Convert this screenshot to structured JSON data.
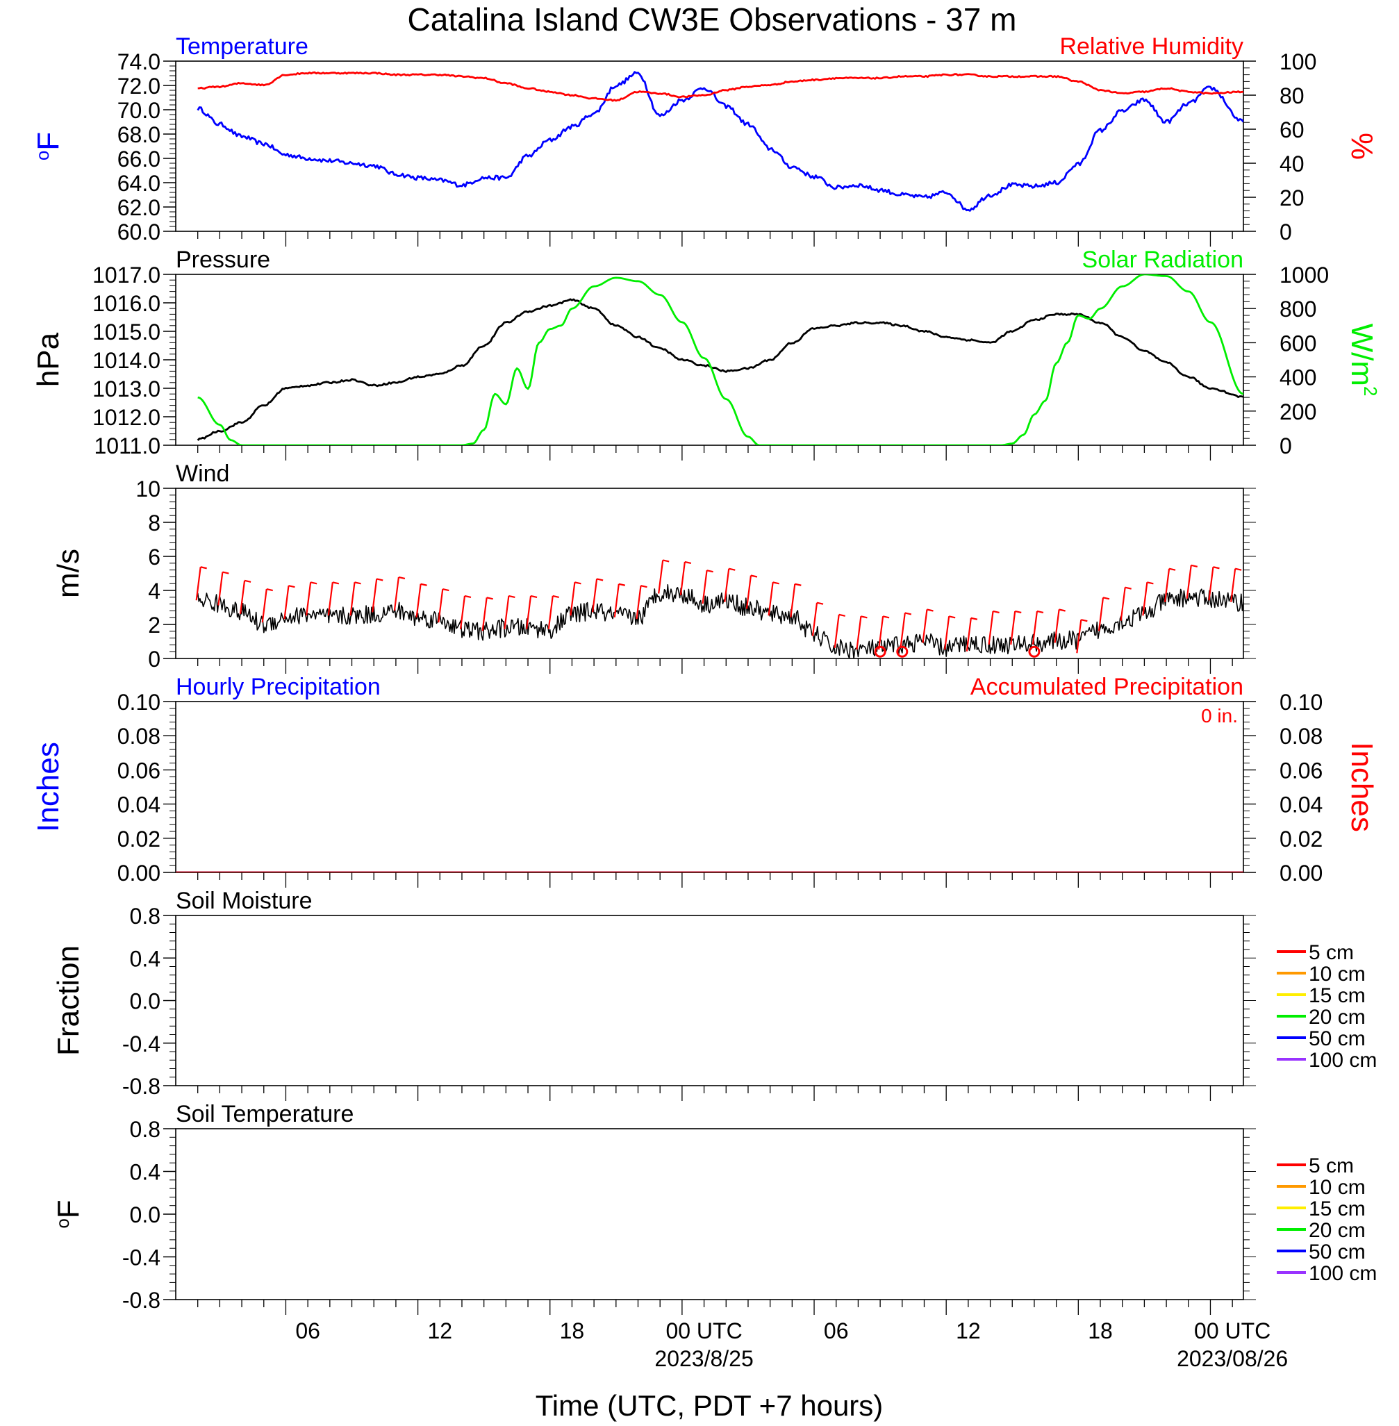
{
  "title": "Catalina Island CW3E Observations - 37 m",
  "x_axis": {
    "label": "Time (UTC, PDT +7 hours)",
    "ticks": [
      {
        "hour": 6,
        "label": "06"
      },
      {
        "hour": 12,
        "label": "12"
      },
      {
        "hour": 18,
        "label": "18"
      },
      {
        "hour": 24,
        "label": "00 UTC",
        "sublabel": "2023/8/25"
      },
      {
        "hour": 30,
        "label": "06"
      },
      {
        "hour": 36,
        "label": "12"
      },
      {
        "hour": 42,
        "label": "18"
      },
      {
        "hour": 48,
        "label": "00 UTC",
        "sublabel": "2023/08/26"
      }
    ],
    "range_hours": [
      -5,
      43.5
    ],
    "hour_reference": "00 UTC 2023/8/24"
  },
  "colors": {
    "blue": "#0000ff",
    "red": "#ff0000",
    "green": "#00ee00",
    "black": "#000000",
    "darkred": "#cc0000"
  },
  "chart_data": [
    {
      "type": "line",
      "panel": "temperature_humidity",
      "left_title": "Temperature",
      "right_title": "Relative Humidity",
      "left_unit": "oF",
      "right_unit": "%",
      "left_ylim": [
        60,
        74
      ],
      "left_ticks": [
        "74.0",
        "72.0",
        "70.0",
        "68.0",
        "66.0",
        "64.0",
        "62.0",
        "60.0"
      ],
      "right_ylim": [
        0,
        100
      ],
      "right_ticks": [
        "100",
        "80",
        "60",
        "40",
        "20",
        "0"
      ],
      "series": [
        {
          "key": "temperature",
          "axis": "left",
          "color": "#0000ff",
          "x": [
            1,
            2,
            3,
            4,
            5,
            6,
            7,
            8,
            9,
            10,
            11,
            12,
            13,
            14,
            15,
            16,
            17,
            18,
            19,
            20,
            21,
            22,
            23,
            24,
            25,
            26,
            27,
            28,
            29,
            30,
            31,
            32,
            33,
            34,
            35,
            36,
            37,
            38,
            39,
            40,
            41,
            42,
            43,
            44,
            45,
            46,
            47,
            48.5
          ],
          "y": [
            70.1,
            68.8,
            67.8,
            67.2,
            66.3,
            66.0,
            65.8,
            65.6,
            65.4,
            64.7,
            64.4,
            64.2,
            63.8,
            64.4,
            64.4,
            66.2,
            67.5,
            68.6,
            69.7,
            72.0,
            73.0,
            69.5,
            70.8,
            71.8,
            70.3,
            68.8,
            66.8,
            65.3,
            64.5,
            63.6,
            63.8,
            63.4,
            63.0,
            62.8,
            63.2,
            61.8,
            63.0,
            63.8,
            63.7,
            64.0,
            65.5,
            68.3,
            69.9,
            70.8,
            69.0,
            70.5,
            71.8,
            69.0
          ]
        },
        {
          "key": "relative_humidity",
          "axis": "right",
          "color": "#ff0000",
          "x": [
            1,
            2,
            3,
            4,
            5,
            6,
            7,
            8,
            9,
            10,
            11,
            12,
            13,
            14,
            15,
            16,
            17,
            18,
            19,
            20,
            21,
            22,
            23,
            24,
            25,
            26,
            27,
            28,
            29,
            30,
            31,
            32,
            33,
            34,
            35,
            36,
            37,
            38,
            39,
            40,
            41,
            42,
            43,
            44,
            45,
            46,
            47,
            48.5
          ],
          "y": [
            84,
            85,
            87,
            86,
            92,
            93,
            93,
            93,
            93,
            92,
            92,
            92,
            91,
            90,
            87,
            84,
            82,
            80,
            78,
            77,
            82,
            81,
            79,
            80,
            83,
            85,
            86,
            88,
            89,
            90,
            90,
            90,
            91,
            91,
            92,
            92,
            91,
            91,
            91,
            91,
            88,
            83,
            81,
            82,
            84,
            82,
            81,
            82
          ]
        }
      ]
    },
    {
      "type": "line",
      "panel": "pressure_solar",
      "left_title": "Pressure",
      "right_title": "Solar Radiation",
      "left_unit": "hPa",
      "right_unit": "W/m",
      "right_unit_sup": "2",
      "left_ylim": [
        1011,
        1017
      ],
      "left_ticks": [
        "1017.0",
        "1016.0",
        "1015.0",
        "1014.0",
        "1013.0",
        "1012.0",
        "1011.0"
      ],
      "right_ylim": [
        0,
        1000
      ],
      "right_ticks": [
        "1000",
        "800",
        "600",
        "400",
        "200",
        "0"
      ],
      "series": [
        {
          "key": "pressure",
          "axis": "left",
          "color": "#000000",
          "x": [
            1,
            2,
            3,
            4,
            5,
            6,
            7,
            8,
            9,
            10,
            11,
            12,
            13,
            14,
            15,
            16,
            17,
            18,
            19,
            20,
            21,
            22,
            23,
            24,
            25,
            26,
            27,
            28,
            29,
            30,
            31,
            32,
            33,
            34,
            35,
            36,
            37,
            38,
            39,
            40,
            41,
            42,
            43,
            44,
            45,
            46,
            47,
            48.5
          ],
          "y": [
            1011.2,
            1011.5,
            1011.8,
            1012.4,
            1013.0,
            1013.1,
            1013.2,
            1013.3,
            1013.1,
            1013.2,
            1013.4,
            1013.5,
            1013.8,
            1014.5,
            1015.3,
            1015.7,
            1015.9,
            1016.1,
            1015.8,
            1015.2,
            1014.8,
            1014.4,
            1014.0,
            1013.8,
            1013.6,
            1013.7,
            1014.0,
            1014.6,
            1015.1,
            1015.2,
            1015.3,
            1015.3,
            1015.2,
            1015.0,
            1014.8,
            1014.7,
            1014.6,
            1015.0,
            1015.4,
            1015.6,
            1015.6,
            1015.3,
            1014.8,
            1014.3,
            1013.9,
            1013.4,
            1013.0,
            1012.7
          ]
        },
        {
          "key": "solar_radiation",
          "axis": "right",
          "color": "#00ee00",
          "x": [
            1,
            2,
            2.5,
            3,
            4,
            5,
            6,
            7,
            8,
            9,
            10,
            11,
            12,
            13,
            13.5,
            14,
            14.5,
            15,
            15.5,
            16,
            16.5,
            17,
            17.5,
            18,
            19,
            20,
            21,
            22,
            23,
            24,
            25,
            26,
            26.5,
            27,
            28,
            29,
            30,
            31,
            32,
            33,
            34,
            35,
            36,
            37,
            37.5,
            38,
            38.5,
            39,
            39.5,
            40,
            40.5,
            41,
            41.5,
            42,
            43,
            44,
            45,
            46,
            47,
            48.5
          ],
          "y": [
            280,
            120,
            30,
            0,
            0,
            0,
            0,
            0,
            0,
            0,
            0,
            0,
            0,
            0,
            10,
            90,
            300,
            240,
            450,
            330,
            600,
            680,
            700,
            800,
            930,
            980,
            960,
            880,
            720,
            510,
            270,
            50,
            0,
            0,
            0,
            0,
            0,
            0,
            0,
            0,
            0,
            0,
            0,
            0,
            0,
            10,
            60,
            180,
            260,
            480,
            600,
            760,
            740,
            800,
            930,
            1000,
            990,
            900,
            720,
            300
          ]
        }
      ]
    },
    {
      "type": "line",
      "panel": "wind",
      "left_title": "Wind",
      "left_unit": "m/s",
      "left_ylim": [
        0,
        10
      ],
      "left_ticks": [
        "10",
        "8",
        "6",
        "4",
        "2",
        "0"
      ],
      "series": [
        {
          "key": "wind_speed",
          "axis": "left",
          "color": "#000000",
          "x": [
            1,
            2,
            3,
            4,
            5,
            6,
            7,
            8,
            9,
            10,
            11,
            12,
            13,
            14,
            15,
            16,
            17,
            18,
            19,
            20,
            21,
            22,
            23,
            24,
            25,
            26,
            27,
            28,
            29,
            30,
            31,
            32,
            33,
            34,
            35,
            36,
            37,
            38,
            39,
            40,
            41,
            42,
            43,
            44,
            45,
            46,
            47,
            48.5
          ],
          "y": [
            3.5,
            3.2,
            2.7,
            2.0,
            2.4,
            2.6,
            2.4,
            2.5,
            2.6,
            2.8,
            2.4,
            2.3,
            1.7,
            1.6,
            1.8,
            1.8,
            1.7,
            2.6,
            2.8,
            2.5,
            2.4,
            3.9,
            3.8,
            3.2,
            3.4,
            3.0,
            2.6,
            2.5,
            1.4,
            0.6,
            0.5,
            0.6,
            0.8,
            1.0,
            0.6,
            0.9,
            0.8,
            0.8,
            0.9,
            1.0,
            1.1,
            1.7,
            2.2,
            2.6,
            3.4,
            3.6,
            3.5,
            3.3
          ]
        },
        {
          "key": "wind_barbs_hourly",
          "color": "#ff0000",
          "x": [
            1,
            2,
            3,
            4,
            5,
            6,
            7,
            8,
            9,
            10,
            11,
            12,
            13,
            14,
            15,
            16,
            17,
            18,
            19,
            20,
            21,
            22,
            23,
            24,
            25,
            26,
            27,
            28,
            29,
            30,
            31,
            32,
            33,
            34,
            35,
            36,
            37,
            38,
            39,
            40,
            41,
            42,
            43,
            44,
            45,
            46,
            47,
            48
          ],
          "y": [
            3.5,
            3.2,
            2.7,
            2.2,
            2.4,
            2.6,
            2.6,
            2.6,
            2.8,
            2.9,
            2.5,
            2.2,
            1.8,
            1.7,
            1.8,
            1.8,
            1.8,
            2.6,
            2.8,
            2.5,
            2.4,
            3.9,
            3.8,
            3.3,
            3.4,
            3.0,
            2.6,
            2.5,
            1.4,
            0.7,
            0.6,
            0.6,
            0.8,
            1.0,
            0.6,
            0.5,
            0.9,
            0.9,
            0.9,
            1.0,
            0.4,
            1.7,
            2.3,
            2.6,
            3.4,
            3.6,
            3.5,
            3.4
          ],
          "calm_circles_hours": [
            32,
            33,
            39
          ]
        }
      ]
    },
    {
      "type": "line",
      "panel": "precipitation",
      "left_title": "Hourly Precipitation",
      "right_title": "Accumulated Precipitation",
      "right_note": "0 in.",
      "left_unit": "Inches",
      "right_unit": "Inches",
      "left_ylim": [
        0,
        0.1
      ],
      "left_ticks": [
        "0.10",
        "0.08",
        "0.06",
        "0.04",
        "0.02",
        "0.00"
      ],
      "right_ylim": [
        0,
        0.1
      ],
      "right_ticks": [
        "0.10",
        "0.08",
        "0.06",
        "0.04",
        "0.02",
        "0.00"
      ],
      "series": [
        {
          "key": "hourly_precip",
          "color": "#0000ff",
          "x": [
            0,
            48.5
          ],
          "y": [
            0,
            0
          ]
        },
        {
          "key": "accumulated_precip",
          "color": "#cc0000",
          "x": [
            0,
            48.5
          ],
          "y": [
            0,
            0
          ]
        }
      ]
    },
    {
      "type": "line",
      "panel": "soil_moisture",
      "left_title": "Soil Moisture",
      "left_unit": "Fraction",
      "left_ylim": [
        -1,
        1
      ],
      "left_ticks": [
        "0.8",
        "0.4",
        "0.0",
        "-0.4",
        "-0.8"
      ],
      "legend": [
        {
          "label": "5 cm",
          "color": "#ff0000"
        },
        {
          "label": "10 cm",
          "color": "#ff9900"
        },
        {
          "label": "15 cm",
          "color": "#ffee00"
        },
        {
          "label": "20 cm",
          "color": "#00ee00"
        },
        {
          "label": "50 cm",
          "color": "#0000ff"
        },
        {
          "label": "100 cm",
          "color": "#9933ff"
        }
      ]
    },
    {
      "type": "line",
      "panel": "soil_temperature",
      "left_title": "Soil Temperature",
      "left_unit": "oF",
      "left_ylim": [
        -1,
        1
      ],
      "left_ticks": [
        "0.8",
        "0.4",
        "0.0",
        "-0.4",
        "-0.8"
      ],
      "legend": [
        {
          "label": "5 cm",
          "color": "#ff0000"
        },
        {
          "label": "10 cm",
          "color": "#ff9900"
        },
        {
          "label": "15 cm",
          "color": "#ffee00"
        },
        {
          "label": "20 cm",
          "color": "#00ee00"
        },
        {
          "label": "50 cm",
          "color": "#0000ff"
        },
        {
          "label": "100 cm",
          "color": "#9933ff"
        }
      ]
    }
  ]
}
